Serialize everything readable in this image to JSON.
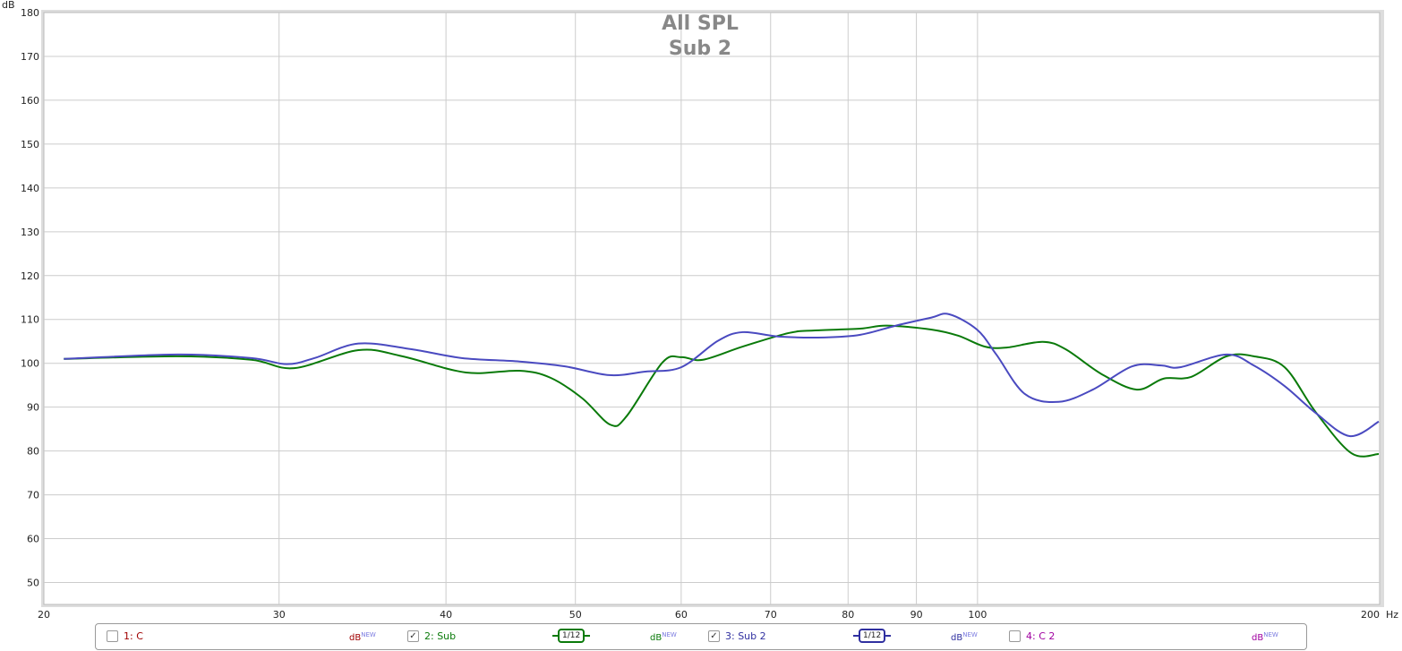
{
  "chart_data": {
    "type": "line",
    "title": "All SPL",
    "subtitle": "Sub 2",
    "ylabel": "dB",
    "xunit": "Hz",
    "xscale": "log",
    "xlim": [
      20,
      200
    ],
    "ylim": [
      45,
      180
    ],
    "grid": true,
    "xticks": [
      20,
      30,
      40,
      50,
      60,
      70,
      80,
      90,
      100,
      200
    ],
    "xtick_labels": [
      "20",
      "30",
      "40",
      "50",
      "60",
      "70",
      "80",
      "90",
      "100",
      "200"
    ],
    "yticks": [
      50,
      60,
      70,
      80,
      90,
      100,
      110,
      120,
      130,
      140,
      150,
      160,
      170,
      180
    ],
    "series": [
      {
        "name": "2: Sub",
        "color": "#0a7a0a",
        "x": [
          20.7,
          25.2,
          28.6,
          30.8,
          34.4,
          37.1,
          41.4,
          45.4,
          47.9,
          50.6,
          53.1,
          54.6,
          58.1,
          60.0,
          62.3,
          66.7,
          72.2,
          75.6,
          81.7,
          85.5,
          92.3,
          96.7,
          101.3,
          105.2,
          111.9,
          116.4,
          123.9,
          131.6,
          137.8,
          144.5,
          153.6,
          161.0,
          169.8,
          179.1,
          190.5,
          199.7
        ],
        "y": [
          101.0,
          101.6,
          100.8,
          98.9,
          103.0,
          101.6,
          97.9,
          98.3,
          96.7,
          92.0,
          86.0,
          87.9,
          100.2,
          101.4,
          100.8,
          103.8,
          106.9,
          107.5,
          107.9,
          108.6,
          107.7,
          106.3,
          103.8,
          103.6,
          104.9,
          103.2,
          97.5,
          94.0,
          96.5,
          96.9,
          101.6,
          101.6,
          99.1,
          88.9,
          79.5,
          79.3
        ]
      },
      {
        "name": "3: Sub 2",
        "color": "#4a4ac0",
        "x": [
          20.7,
          25.2,
          28.6,
          30.4,
          31.9,
          34.4,
          37.7,
          41.1,
          45.4,
          49.1,
          53.0,
          56.4,
          60.0,
          63.9,
          66.7,
          71.0,
          76.8,
          81.7,
          86.9,
          92.3,
          95.2,
          99.9,
          103.3,
          108.5,
          115.0,
          122.0,
          130.5,
          137.3,
          141.8,
          153.6,
          161.0,
          169.8,
          179.1,
          189.9,
          199.7
        ],
        "y": [
          101.0,
          102.0,
          101.2,
          99.8,
          101.2,
          104.5,
          103.2,
          101.2,
          100.4,
          99.3,
          97.3,
          98.1,
          99.1,
          105.1,
          107.1,
          106.1,
          105.9,
          106.5,
          108.6,
          110.4,
          111.2,
          107.7,
          102.0,
          93.0,
          91.2,
          94.0,
          99.3,
          99.5,
          99.1,
          102.0,
          99.5,
          94.8,
          88.7,
          83.4,
          86.7
        ]
      }
    ]
  },
  "legend": {
    "items": [
      {
        "label": "1: C",
        "checked": false,
        "color": "#a00000",
        "db": "dB",
        "new": "NEW"
      },
      {
        "label": "2: Sub",
        "checked": true,
        "color": "#0a7a0a",
        "smoothing": "1/12",
        "db": "dB",
        "new": "NEW"
      },
      {
        "label": "3: Sub 2",
        "checked": true,
        "color": "#3030a0",
        "smoothing": "1/12",
        "db": "dB",
        "new": "NEW"
      },
      {
        "label": "4: C 2",
        "checked": false,
        "color": "#a000a0",
        "db": "dB",
        "new": "NEW"
      }
    ]
  }
}
